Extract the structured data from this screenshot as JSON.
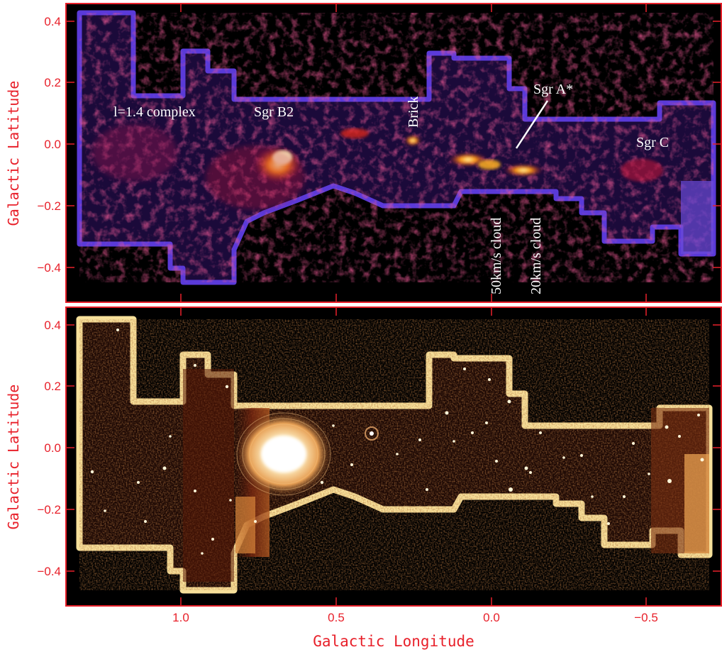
{
  "figure": {
    "ylabel_top": "Galactic Latitude",
    "ylabel_bottom": "Galactic Latitude",
    "xlabel": "Galactic Longitude",
    "x_ticks": [
      "1.0",
      "0.5",
      "0.0",
      "−0.5"
    ],
    "y_ticks": [
      "0.4",
      "0.2",
      "0.0",
      "−0.2",
      "−0.4"
    ],
    "axis_color": "#e8202a"
  },
  "top_panel": {
    "colormap": "blue-red-yellow (molecular emission)",
    "labels": {
      "complex": "l=1.4 complex",
      "sgr_b2": "Sgr B2",
      "brick": "Brick",
      "sgr_a": "Sgr A*",
      "sgr_c": "Sgr C",
      "cloud50": "50km/s cloud",
      "cloud20": "20km/s cloud"
    }
  },
  "bottom_panel": {
    "colormap": "black-orange-white (X-ray emission)"
  },
  "chart_data": [
    {
      "type": "heatmap",
      "panel": "top",
      "xlim": [
        1.35,
        -0.75
      ],
      "ylim": [
        -0.52,
        0.45
      ],
      "xlabel": "",
      "ylabel": "Galactic Latitude",
      "annotations": [
        {
          "text": "l=1.4 complex",
          "x": 1.23,
          "y": 0.1
        },
        {
          "text": "Sgr B2",
          "x": 0.68,
          "y": 0.1
        },
        {
          "text": "Brick",
          "x": 0.25,
          "y": 0.1
        },
        {
          "text": "Sgr A*",
          "x": -0.15,
          "y": 0.17
        },
        {
          "text": "Sgr C",
          "x": -0.57,
          "y": 0.0
        },
        {
          "text": "50km/s cloud",
          "x": 0.0,
          "y": -0.35
        },
        {
          "text": "20km/s cloud",
          "x": -0.14,
          "y": -0.35
        }
      ]
    },
    {
      "type": "heatmap",
      "panel": "bottom",
      "xlim": [
        1.35,
        -0.75
      ],
      "ylim": [
        -0.52,
        0.45
      ],
      "xlabel": "Galactic Longitude",
      "ylabel": "Galactic Latitude",
      "x_ticks": [
        1.0,
        0.5,
        0.0,
        -0.5
      ],
      "y_ticks": [
        0.4,
        0.2,
        0.0,
        -0.2,
        -0.4
      ]
    }
  ]
}
